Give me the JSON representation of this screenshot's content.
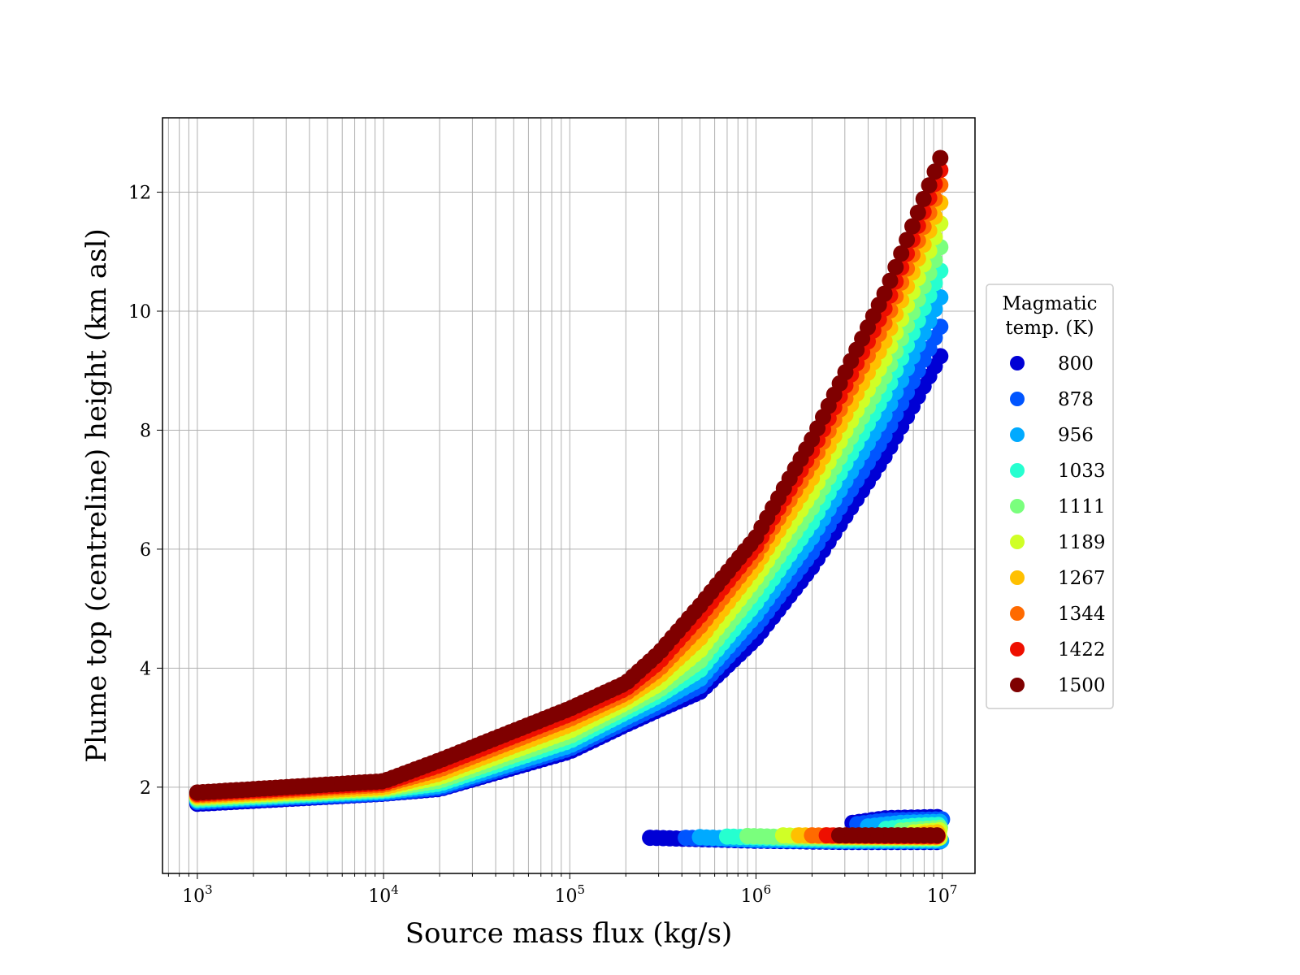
{
  "chart_data": {
    "type": "scatter",
    "title": "",
    "xlabel": "Source mass flux (kg/s)",
    "ylabel": "Plume top (centreline) height (km asl)",
    "xscale": "log",
    "xlim": [
      650,
      15000000
    ],
    "ylim": [
      0.55,
      13.25
    ],
    "xticks": [
      {
        "value": 1000,
        "base": "10",
        "exp": "3"
      },
      {
        "value": 10000,
        "base": "10",
        "exp": "4"
      },
      {
        "value": 100000,
        "base": "10",
        "exp": "5"
      },
      {
        "value": 1000000,
        "base": "10",
        "exp": "6"
      },
      {
        "value": 10000000,
        "base": "10",
        "exp": "7"
      }
    ],
    "yticks": [
      2,
      4,
      6,
      8,
      10,
      12
    ],
    "grid": true,
    "legend": {
      "title_line1": "Magmatic",
      "title_line2": "temp. (K)",
      "placement": "outside-right"
    },
    "series": [
      {
        "name": "800",
        "color": "#0000d5",
        "upper": [
          [
            1000,
            1.72
          ],
          [
            10000,
            1.89
          ],
          [
            20000,
            1.97
          ],
          [
            100000,
            2.6
          ],
          [
            200000,
            3.05
          ],
          [
            300000,
            3.3
          ],
          [
            500000,
            3.6
          ],
          [
            1000000,
            4.5
          ],
          [
            2000000,
            5.7
          ],
          [
            5000000,
            7.6
          ],
          [
            10000000,
            9.3
          ]
        ],
        "lower": [
          [
            270000,
            1.15
          ],
          [
            1000000,
            1.1
          ],
          [
            3000000,
            1.08
          ],
          [
            10000000,
            1.08
          ]
        ],
        "lower_hi": [
          [
            3300000,
            1.4
          ],
          [
            5000000,
            1.48
          ],
          [
            10000000,
            1.5
          ]
        ]
      },
      {
        "name": "878",
        "color": "#0055ff",
        "upper": [
          [
            1000,
            1.75
          ],
          [
            10000,
            1.9
          ],
          [
            20000,
            1.99
          ],
          [
            100000,
            2.65
          ],
          [
            200000,
            3.1
          ],
          [
            300000,
            3.36
          ],
          [
            500000,
            3.7
          ],
          [
            1000000,
            4.7
          ],
          [
            2000000,
            5.95
          ],
          [
            5000000,
            7.95
          ],
          [
            10000000,
            9.8
          ]
        ],
        "lower": [
          [
            420000,
            1.15
          ],
          [
            1000000,
            1.11
          ],
          [
            3000000,
            1.09
          ],
          [
            10000000,
            1.09
          ]
        ],
        "lower_hi": [
          [
            3500000,
            1.38
          ],
          [
            5000000,
            1.44
          ],
          [
            10000000,
            1.46
          ]
        ]
      },
      {
        "name": "956",
        "color": "#00aaff",
        "upper": [
          [
            1000,
            1.77
          ],
          [
            10000,
            1.92
          ],
          [
            20000,
            2.02
          ],
          [
            100000,
            2.7
          ],
          [
            200000,
            3.17
          ],
          [
            300000,
            3.44
          ],
          [
            500000,
            3.82
          ],
          [
            1000000,
            4.9
          ],
          [
            2000000,
            6.2
          ],
          [
            5000000,
            8.3
          ],
          [
            10000000,
            10.3
          ]
        ],
        "lower": [
          [
            500000,
            1.16
          ],
          [
            1000000,
            1.12
          ],
          [
            3000000,
            1.1
          ],
          [
            10000000,
            1.1
          ]
        ],
        "lower_hi": [
          [
            4000000,
            1.34
          ],
          [
            6000000,
            1.4
          ],
          [
            10000000,
            1.42
          ]
        ]
      },
      {
        "name": "1033",
        "color": "#26ffd0",
        "upper": [
          [
            1000,
            1.79
          ],
          [
            10000,
            1.94
          ],
          [
            20000,
            2.06
          ],
          [
            100000,
            2.78
          ],
          [
            200000,
            3.26
          ],
          [
            300000,
            3.54
          ],
          [
            500000,
            3.97
          ],
          [
            1000000,
            5.1
          ],
          [
            2000000,
            6.45
          ],
          [
            5000000,
            8.65
          ],
          [
            10000000,
            10.75
          ]
        ],
        "lower": [
          [
            700000,
            1.17
          ],
          [
            1500000,
            1.14
          ],
          [
            3000000,
            1.12
          ],
          [
            10000000,
            1.12
          ]
        ],
        "lower_hi": [
          [
            5000000,
            1.3
          ],
          [
            7000000,
            1.35
          ],
          [
            10000000,
            1.37
          ]
        ]
      },
      {
        "name": "1111",
        "color": "#7aff7d",
        "upper": [
          [
            1000,
            1.81
          ],
          [
            10000,
            1.96
          ],
          [
            20000,
            2.11
          ],
          [
            100000,
            2.86
          ],
          [
            200000,
            3.34
          ],
          [
            300000,
            3.63
          ],
          [
            500000,
            4.12
          ],
          [
            1000000,
            5.32
          ],
          [
            2000000,
            6.7
          ],
          [
            5000000,
            8.95
          ],
          [
            10000000,
            11.15
          ]
        ],
        "lower": [
          [
            900000,
            1.18
          ],
          [
            2000000,
            1.15
          ],
          [
            10000000,
            1.14
          ]
        ],
        "lower_hi": [
          [
            6000000,
            1.27
          ],
          [
            10000000,
            1.32
          ]
        ]
      },
      {
        "name": "1189",
        "color": "#d0ff26",
        "upper": [
          [
            1000,
            1.83
          ],
          [
            10000,
            1.98
          ],
          [
            20000,
            2.17
          ],
          [
            100000,
            2.95
          ],
          [
            200000,
            3.42
          ],
          [
            300000,
            3.73
          ],
          [
            500000,
            4.3
          ],
          [
            1000000,
            5.52
          ],
          [
            2000000,
            6.95
          ],
          [
            5000000,
            9.25
          ],
          [
            10000000,
            11.55
          ]
        ],
        "lower": [
          [
            1400000,
            1.19
          ],
          [
            3000000,
            1.16
          ],
          [
            10000000,
            1.15
          ]
        ],
        "lower_hi": [
          [
            7000000,
            1.24
          ],
          [
            10000000,
            1.28
          ]
        ]
      },
      {
        "name": "1267",
        "color": "#ffc000",
        "upper": [
          [
            1000,
            1.85
          ],
          [
            10000,
            2.0
          ],
          [
            20000,
            2.23
          ],
          [
            100000,
            3.05
          ],
          [
            200000,
            3.5
          ],
          [
            300000,
            3.86
          ],
          [
            500000,
            4.5
          ],
          [
            1000000,
            5.72
          ],
          [
            2000000,
            7.2
          ],
          [
            5000000,
            9.55
          ],
          [
            10000000,
            11.9
          ]
        ],
        "lower": [
          [
            1700000,
            1.19
          ],
          [
            3000000,
            1.17
          ],
          [
            10000000,
            1.16
          ]
        ],
        "lower_hi": [
          [
            8000000,
            1.22
          ],
          [
            10000000,
            1.25
          ]
        ]
      },
      {
        "name": "1344",
        "color": "#ff6a00",
        "upper": [
          [
            1000,
            1.87
          ],
          [
            10000,
            2.04
          ],
          [
            20000,
            2.3
          ],
          [
            100000,
            3.15
          ],
          [
            200000,
            3.58
          ],
          [
            300000,
            3.98
          ],
          [
            500000,
            4.7
          ],
          [
            1000000,
            5.9
          ],
          [
            2000000,
            7.45
          ],
          [
            5000000,
            9.85
          ],
          [
            10000000,
            12.2
          ]
        ],
        "lower": [
          [
            2000000,
            1.19
          ],
          [
            4000000,
            1.18
          ],
          [
            10000000,
            1.17
          ]
        ],
        "lower_hi": []
      },
      {
        "name": "1422",
        "color": "#ee0f00",
        "upper": [
          [
            1000,
            1.89
          ],
          [
            10000,
            2.07
          ],
          [
            20000,
            2.37
          ],
          [
            100000,
            3.23
          ],
          [
            200000,
            3.66
          ],
          [
            300000,
            4.1
          ],
          [
            500000,
            4.88
          ],
          [
            1000000,
            6.05
          ],
          [
            2000000,
            7.65
          ],
          [
            5000000,
            10.1
          ],
          [
            10000000,
            12.45
          ]
        ],
        "lower": [
          [
            2400000,
            1.19
          ],
          [
            5000000,
            1.18
          ],
          [
            10000000,
            1.18
          ]
        ],
        "lower_hi": []
      },
      {
        "name": "1500",
        "color": "#7f0000",
        "upper": [
          [
            1000,
            1.91
          ],
          [
            10000,
            2.1
          ],
          [
            20000,
            2.45
          ],
          [
            100000,
            3.32
          ],
          [
            200000,
            3.75
          ],
          [
            300000,
            4.25
          ],
          [
            500000,
            5.05
          ],
          [
            1000000,
            6.2
          ],
          [
            2000000,
            7.85
          ],
          [
            5000000,
            10.35
          ],
          [
            10000000,
            12.65
          ]
        ],
        "lower": [
          [
            2800000,
            1.19
          ],
          [
            5000000,
            1.19
          ],
          [
            10000000,
            1.19
          ]
        ],
        "lower_hi": []
      }
    ]
  }
}
